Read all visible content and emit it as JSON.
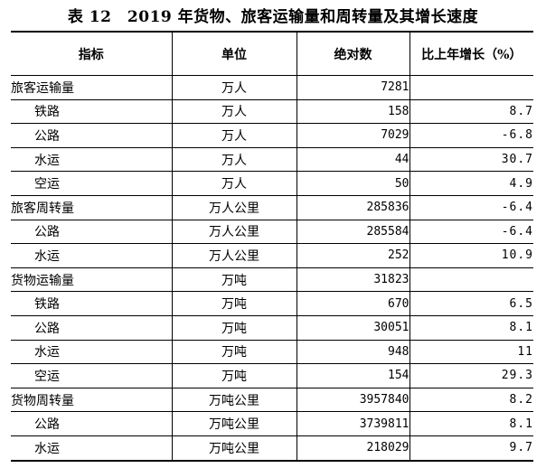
{
  "title": "表 12　2019 年货物、旅客运输量和周转量及其增长速度",
  "table": {
    "headers": [
      "指标",
      "单位",
      "绝对数",
      "比上年增长（%）"
    ],
    "rows": [
      {
        "indicator": "旅客运输量",
        "unit": "万人",
        "value": "7281",
        "growth": "",
        "sub": false
      },
      {
        "indicator": "铁路",
        "unit": "万人",
        "value": "158",
        "growth": "8.7",
        "sub": true
      },
      {
        "indicator": "公路",
        "unit": "万人",
        "value": "7029",
        "growth": "-6.8",
        "sub": true
      },
      {
        "indicator": "水运",
        "unit": "万人",
        "value": "44",
        "growth": "30.7",
        "sub": true
      },
      {
        "indicator": "空运",
        "unit": "万人",
        "value": "50",
        "growth": "4.9",
        "sub": true
      },
      {
        "indicator": "旅客周转量",
        "unit": "万人公里",
        "value": "285836",
        "growth": "-6.4",
        "sub": false
      },
      {
        "indicator": "公路",
        "unit": "万人公里",
        "value": "285584",
        "growth": "-6.4",
        "sub": true
      },
      {
        "indicator": "水运",
        "unit": "万人公里",
        "value": "252",
        "growth": "10.9",
        "sub": true
      },
      {
        "indicator": "货物运输量",
        "unit": "万吨",
        "value": "31823",
        "growth": "",
        "sub": false
      },
      {
        "indicator": "铁路",
        "unit": "万吨",
        "value": "670",
        "growth": "6.5",
        "sub": true
      },
      {
        "indicator": "公路",
        "unit": "万吨",
        "value": "30051",
        "growth": "8.1",
        "sub": true
      },
      {
        "indicator": "水运",
        "unit": "万吨",
        "value": "948",
        "growth": "11",
        "sub": true
      },
      {
        "indicator": "空运",
        "unit": "万吨",
        "value": "154",
        "growth": "29.3",
        "sub": true
      },
      {
        "indicator": "货物周转量",
        "unit": "万吨公里",
        "value": "3957840",
        "growth": "8.2",
        "sub": false
      },
      {
        "indicator": "公路",
        "unit": "万吨公里",
        "value": "3739811",
        "growth": "8.1",
        "sub": true
      },
      {
        "indicator": "水运",
        "unit": "万吨公里",
        "value": "218029",
        "growth": "9.7",
        "sub": true
      }
    ]
  }
}
